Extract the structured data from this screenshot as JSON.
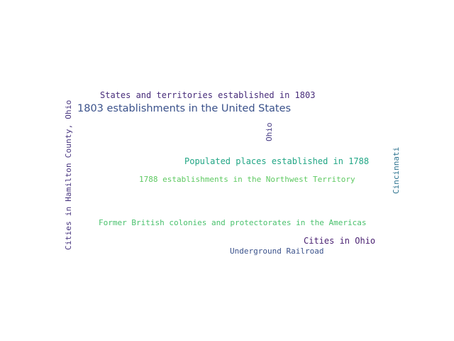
{
  "word_cloud": {
    "words": [
      {
        "text": "Cities in Hamilton County, Ohio",
        "color": "#46337e"
      },
      {
        "text": "States and territories established in 1803",
        "color": "#472c7a"
      },
      {
        "text": "1803 establishments in the United States",
        "color": "#3b528b"
      },
      {
        "text": "Ohio",
        "color": "#443983"
      },
      {
        "text": "Cincinnati",
        "color": "#2c728e"
      },
      {
        "text": "Populated places established in 1788",
        "color": "#21a685"
      },
      {
        "text": "1788 establishments in the Northwest Territory",
        "color": "#5ec962"
      },
      {
        "text": "Former British colonies and protectorates in the Americas",
        "color": "#4ac16d"
      },
      {
        "text": "Cities in Ohio",
        "color": "#481f70"
      },
      {
        "text": "Underground Railroad",
        "color": "#3b528b"
      }
    ]
  }
}
